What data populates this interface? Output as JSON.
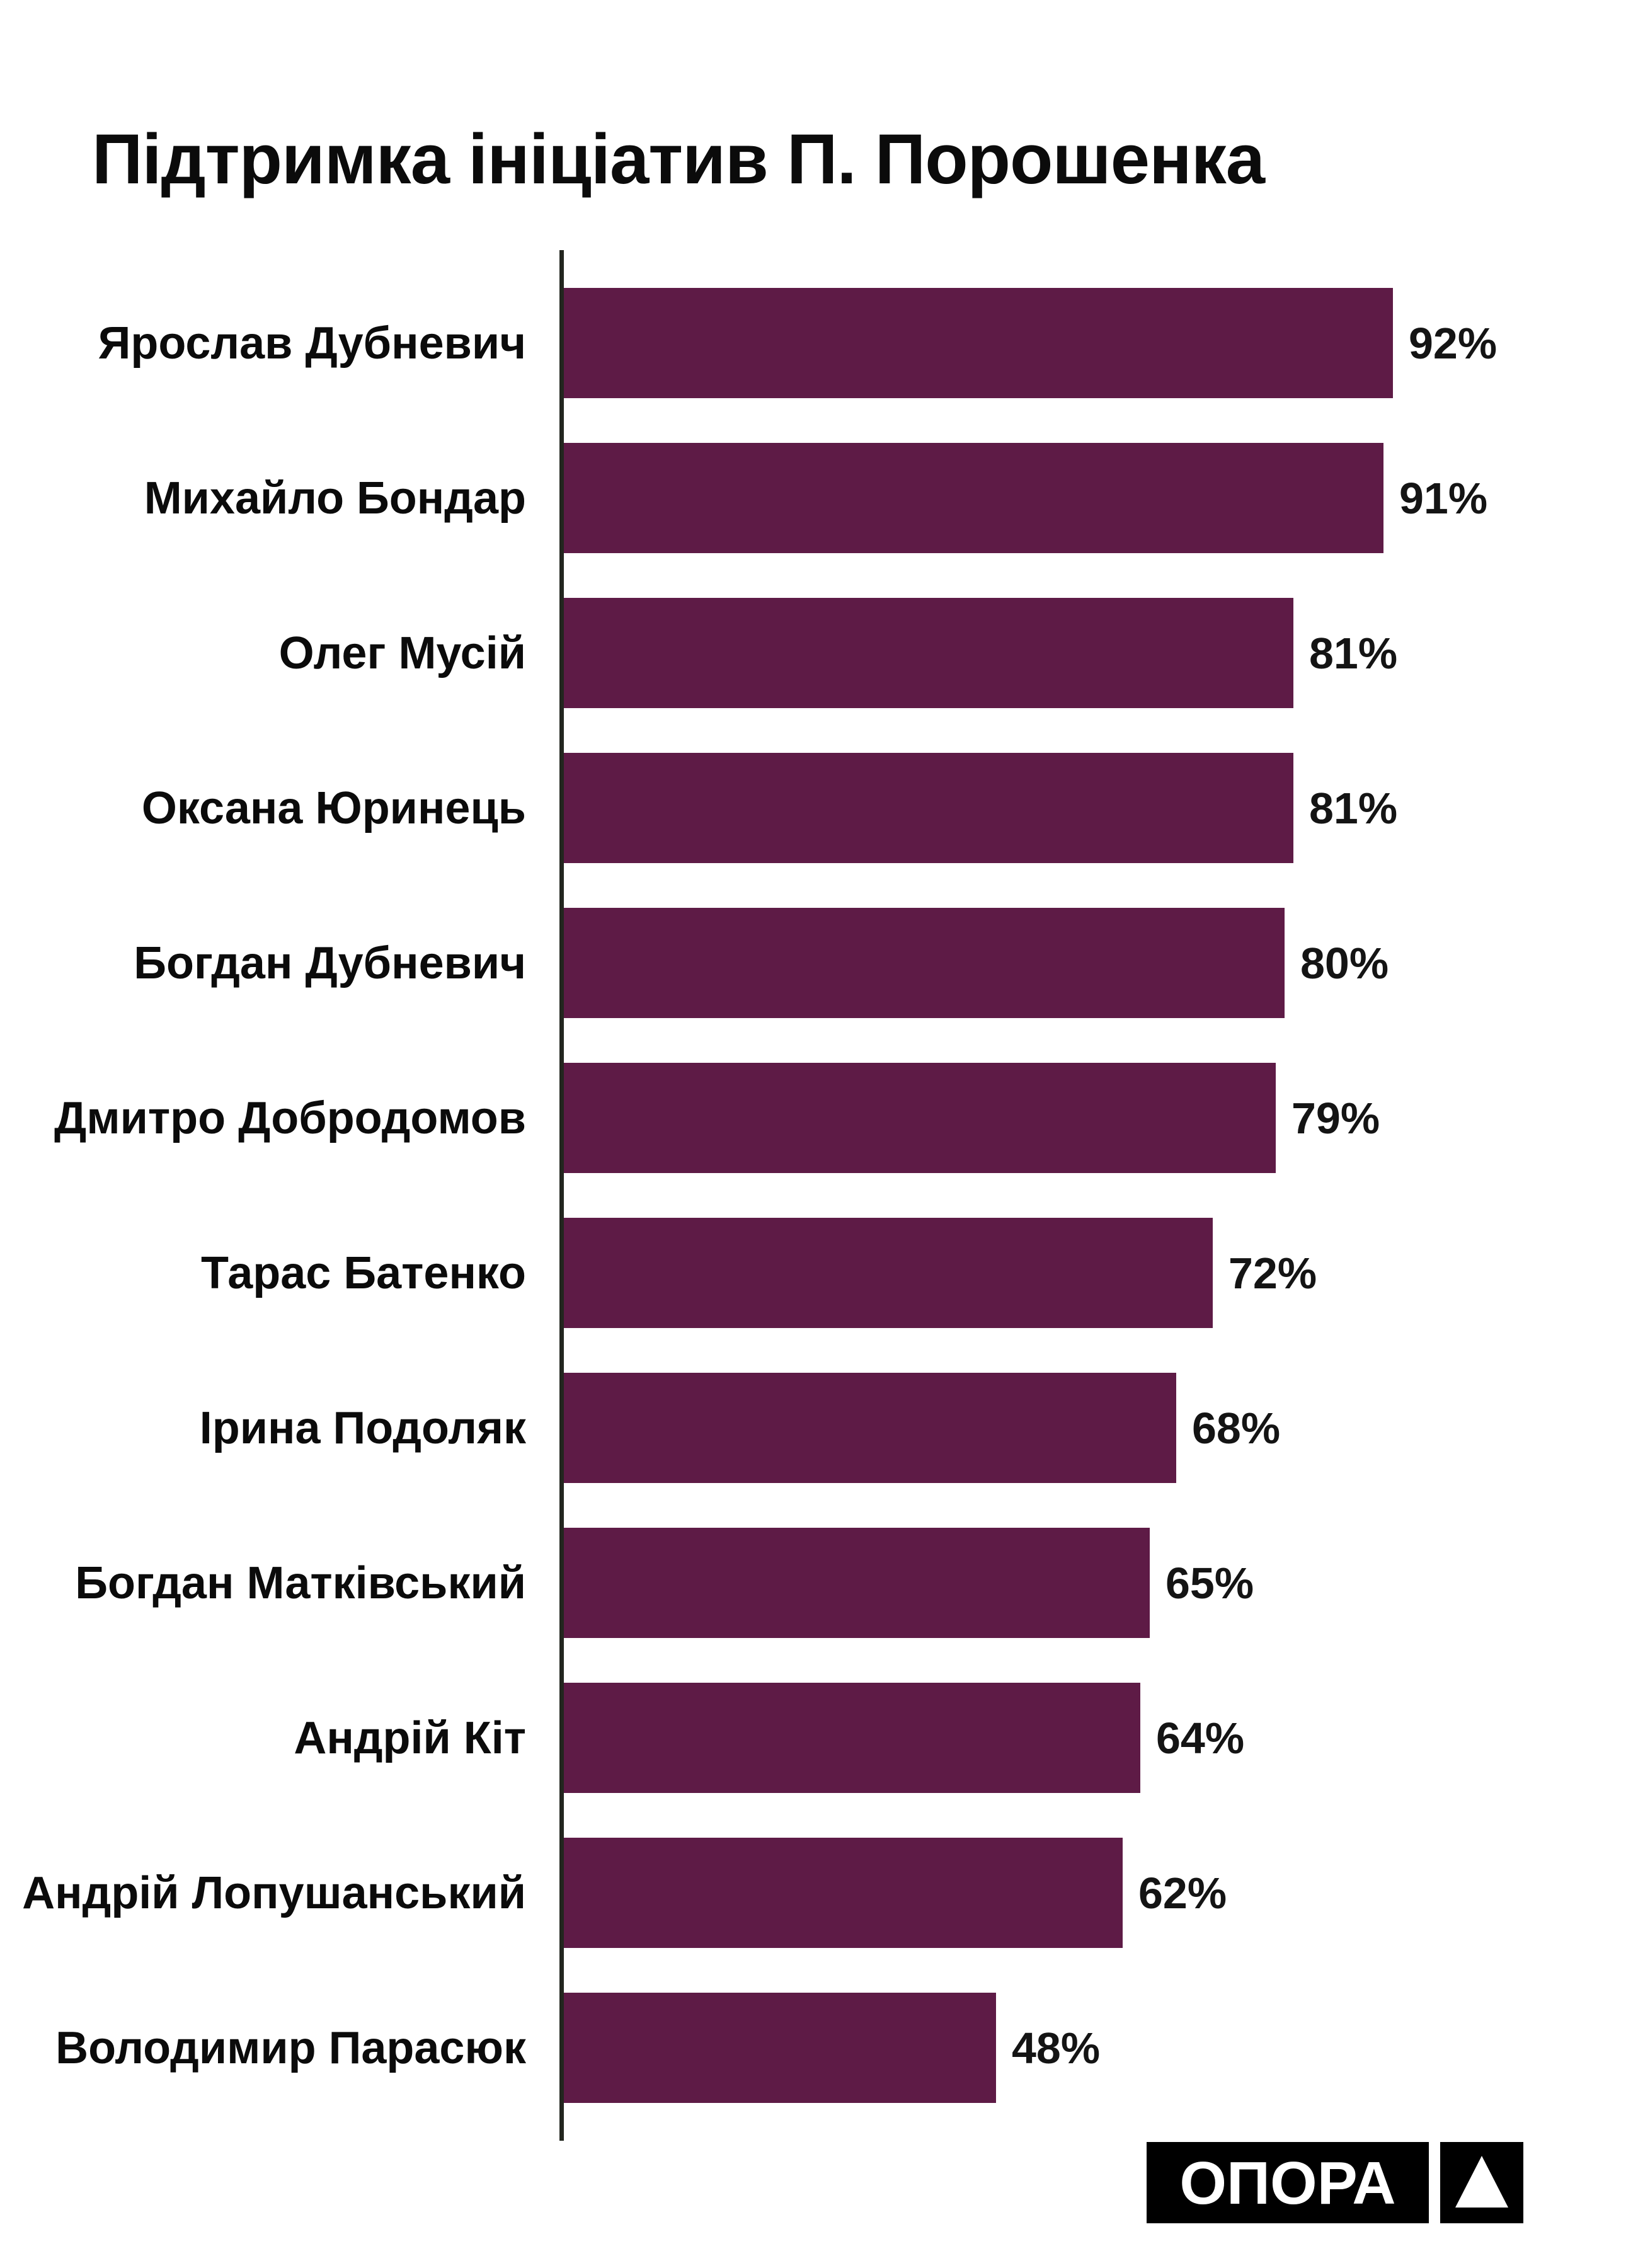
{
  "title": "Підтримка ініціатив П. Порошенка",
  "chart_data": {
    "type": "bar",
    "orientation": "horizontal",
    "title": "Підтримка ініціатив П. Порошенка",
    "categories": [
      "Ярослав Дубневич",
      "Михайло Бондар",
      "Олег Мусій",
      "Оксана Юринець",
      "Богдан Дубневич",
      "Дмитро Добродомов",
      "Тарас Батенко",
      "Ірина Подоляк",
      "Богдан Матківський",
      "Андрій Кіт",
      "Андрій Лопушанський",
      "Володимир Парасюк"
    ],
    "values": [
      92,
      91,
      81,
      81,
      80,
      79,
      72,
      68,
      65,
      64,
      62,
      48
    ],
    "value_suffix": "%",
    "xlim": [
      0,
      100
    ],
    "grid": false,
    "legend": false,
    "bar_color": "#5e1b46",
    "axis_color": "#23261f",
    "label_color": "#0b0b0b",
    "value_color": "#141414"
  },
  "logo": {
    "text": "ОПОРА",
    "bg_color": "#000000",
    "fg_color": "#ffffff"
  }
}
